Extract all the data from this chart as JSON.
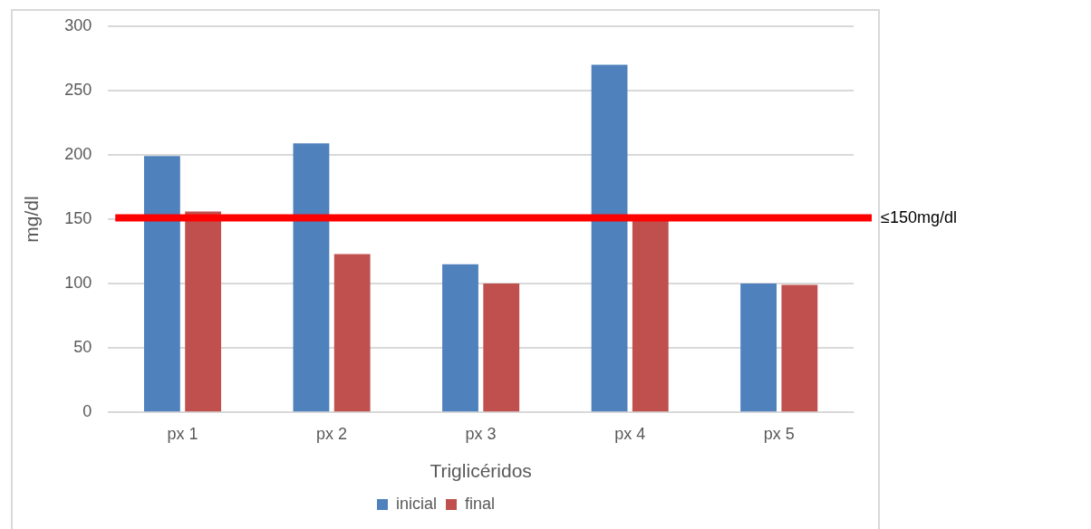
{
  "chart_data": {
    "type": "bar",
    "xlabel": "Triglicéridos",
    "ylabel": "mg/dl",
    "categories": [
      "px 1",
      "px 2",
      "px 3",
      "px 4",
      "px 5"
    ],
    "series": [
      {
        "name": "inicial",
        "color": "#4f81bd",
        "values": [
          199,
          209,
          115,
          270,
          100
        ]
      },
      {
        "name": "final",
        "color": "#c0504d",
        "values": [
          156,
          123,
          100,
          149,
          99
        ]
      }
    ],
    "ylim": [
      0,
      300
    ],
    "yticks": [
      0,
      50,
      100,
      150,
      200,
      250,
      300
    ],
    "grid": "y",
    "legend": "bottom",
    "ref_lines": [
      {
        "axis": "y",
        "value": 151,
        "label": "≤150mg/dl",
        "color": "#ff0000"
      }
    ]
  }
}
